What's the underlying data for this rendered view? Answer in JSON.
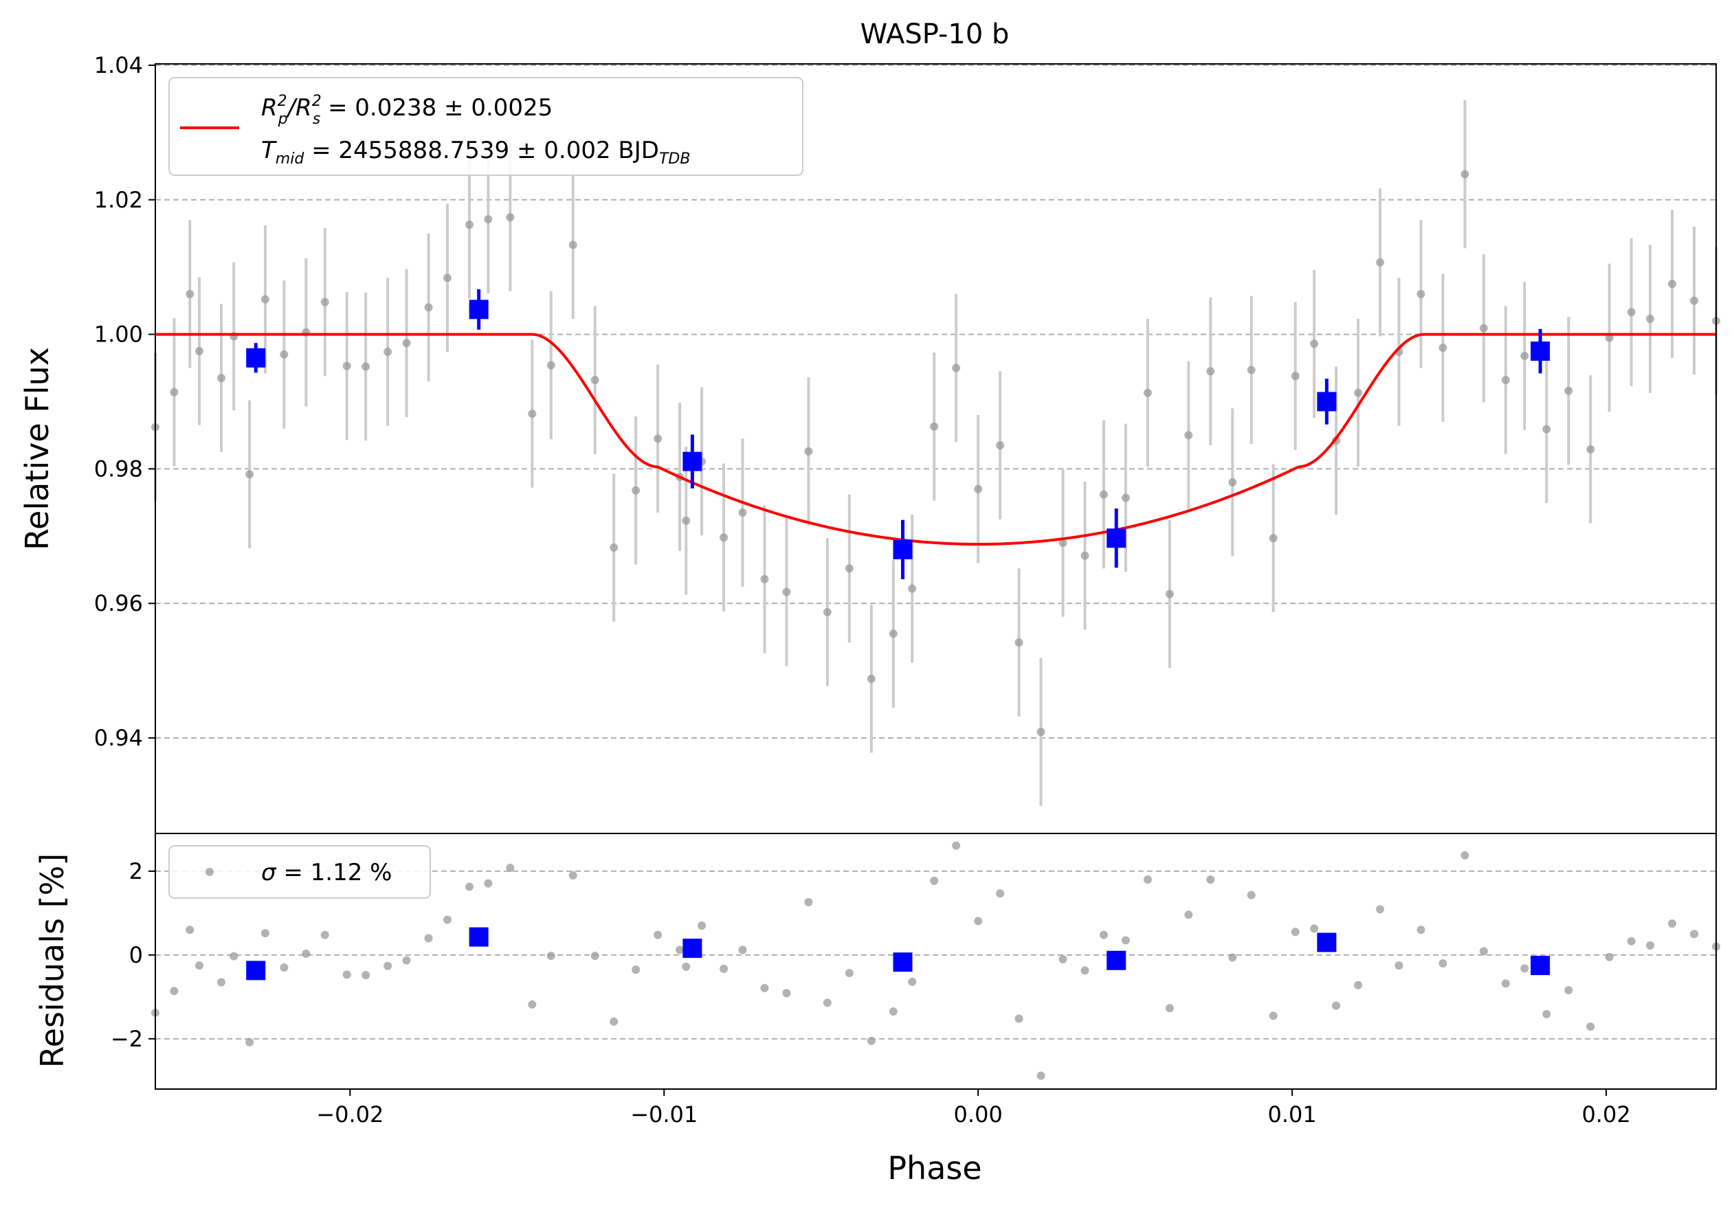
{
  "chart_data": [
    {
      "type": "scatter",
      "panel": "flux",
      "title": "WASP-10 b",
      "xlabel": "",
      "ylabel": "Relative Flux",
      "xlim": [
        -0.0262,
        0.0235
      ],
      "ylim": [
        0.9258,
        1.0402
      ],
      "yticks": [
        0.94,
        0.96,
        0.98,
        1.0,
        1.02,
        1.04
      ],
      "ytick_labels": [
        "0.94",
        "0.96",
        "0.98",
        "1.00",
        "1.02",
        "1.04"
      ],
      "grid": "y-dashed",
      "legend_position": "top-left",
      "legend": {
        "depth_label": "R",
        "depth_sub1": "p",
        "depth_sup1": "2",
        "depth_slash": "/R",
        "depth_sub2": "s",
        "depth_sup2": "2",
        "depth_value": " = 0.0238 ± 0.0025",
        "tmid_label": "T",
        "tmid_sub": "mid",
        "tmid_value": " = 2455888.7539 ± 0.002 BJD",
        "tmid_unit_sub": "TDB"
      },
      "colors": {
        "model": "#ff0000",
        "binned": "#0000ff",
        "raw": "#999999",
        "raw_err": "#cccccc"
      },
      "model": {
        "depth": 0.0312,
        "ingress_start": -0.0142,
        "ingress_end": -0.0102,
        "egress_start": 0.0102,
        "egress_end": 0.0142
      },
      "raw_points": {
        "x": [
          -0.0262,
          -0.0256,
          -0.0251,
          -0.0248,
          -0.0241,
          -0.0237,
          -0.0232,
          -0.0227,
          -0.0221,
          -0.0214,
          -0.0208,
          -0.0201,
          -0.0195,
          -0.0188,
          -0.0182,
          -0.0175,
          -0.0169,
          -0.0162,
          -0.0156,
          -0.0149,
          -0.0142,
          -0.0136,
          -0.0129,
          -0.0122,
          -0.0116,
          -0.0109,
          -0.0102,
          -0.0095,
          -0.0093,
          -0.0088,
          -0.0081,
          -0.0075,
          -0.0068,
          -0.0061,
          -0.0054,
          -0.0048,
          -0.0041,
          -0.0034,
          -0.0027,
          -0.0021,
          -0.0014,
          -0.0007,
          0.0,
          0.0007,
          0.0013,
          0.002,
          0.0027,
          0.0034,
          0.004,
          0.0047,
          0.0054,
          0.0061,
          0.0067,
          0.0074,
          0.0081,
          0.0087,
          0.0094,
          0.0101,
          0.0107,
          0.0114,
          0.0121,
          0.0128,
          0.0134,
          0.0141,
          0.0148,
          0.0155,
          0.0161,
          0.0168,
          0.0174,
          0.0181,
          0.0188,
          0.0195,
          0.0201,
          0.0208,
          0.0214,
          0.0221,
          0.0228,
          0.0235
        ],
        "y": [
          0.9862,
          0.9914,
          1.006,
          0.9975,
          0.9935,
          0.9997,
          0.9792,
          1.0052,
          0.997,
          1.0003,
          1.0048,
          0.9953,
          0.9952,
          0.9974,
          0.9987,
          1.004,
          1.0084,
          1.0163,
          1.0171,
          1.0174,
          0.9882,
          0.9954,
          1.0133,
          0.9932,
          0.9683,
          0.9768,
          0.9845,
          0.9788,
          0.9723,
          0.9811,
          0.9698,
          0.9735,
          0.9636,
          0.9617,
          0.9826,
          0.9587,
          0.9652,
          0.9488,
          0.9555,
          0.9622,
          0.9863,
          0.995,
          0.977,
          0.9835,
          0.9542,
          0.9409,
          0.969,
          0.9671,
          0.9762,
          0.9757,
          0.9913,
          0.9614,
          0.985,
          0.9945,
          0.978,
          0.9947,
          0.9697,
          0.9938,
          0.9986,
          0.9842,
          0.9913,
          1.0107,
          0.9974,
          1.006,
          0.998,
          1.0238,
          1.0009,
          0.9932,
          0.9968,
          0.9859,
          0.9916,
          0.9829,
          0.9995,
          1.0033,
          1.0023,
          1.0075,
          1.005,
          1.002
        ],
        "err": [
          0.011,
          0.011,
          0.011,
          0.011,
          0.011,
          0.011,
          0.011,
          0.011,
          0.011,
          0.011,
          0.011,
          0.011,
          0.011,
          0.011,
          0.011,
          0.011,
          0.011,
          0.011,
          0.011,
          0.011,
          0.011,
          0.011,
          0.011,
          0.011,
          0.011,
          0.011,
          0.011,
          0.011,
          0.011,
          0.011,
          0.011,
          0.011,
          0.011,
          0.011,
          0.011,
          0.011,
          0.011,
          0.011,
          0.011,
          0.011,
          0.011,
          0.011,
          0.011,
          0.011,
          0.011,
          0.011,
          0.011,
          0.011,
          0.011,
          0.011,
          0.011,
          0.011,
          0.011,
          0.011,
          0.011,
          0.011,
          0.011,
          0.011,
          0.011,
          0.011,
          0.011,
          0.011,
          0.011,
          0.011,
          0.011,
          0.011,
          0.011,
          0.011,
          0.011,
          0.011,
          0.011,
          0.011,
          0.011,
          0.011,
          0.011,
          0.011,
          0.011,
          0.011
        ]
      },
      "binned_points": {
        "x": [
          -0.023,
          -0.0159,
          -0.0091,
          -0.0024,
          0.0044,
          0.0111,
          0.0179
        ],
        "y": [
          0.9965,
          1.0037,
          0.9811,
          0.968,
          0.9697,
          0.99,
          0.9975
        ],
        "err": [
          0.0022,
          0.003,
          0.004,
          0.0044,
          0.0044,
          0.0034,
          0.0033
        ]
      }
    },
    {
      "type": "scatter",
      "panel": "residuals",
      "title": "",
      "xlabel": "Phase",
      "ylabel": "Residuals [%]",
      "xlim": [
        -0.0262,
        0.0235
      ],
      "ylim": [
        -3.2,
        2.9
      ],
      "xticks": [
        -0.02,
        -0.01,
        0.0,
        0.01,
        0.02
      ],
      "xtick_labels": [
        "−0.02",
        "−0.01",
        "0.00",
        "0.01",
        "0.02"
      ],
      "yticks": [
        -2,
        0,
        2
      ],
      "ytick_labels": [
        "−2",
        "0",
        "2"
      ],
      "grid": "y-dashed",
      "legend_position": "top-left",
      "legend": {
        "sigma_symbol": "σ",
        "sigma_value": " = 1.12 %"
      },
      "raw_points": {
        "x": [
          -0.0262,
          -0.0256,
          -0.0251,
          -0.0248,
          -0.0241,
          -0.0237,
          -0.0232,
          -0.0227,
          -0.0221,
          -0.0214,
          -0.0208,
          -0.0201,
          -0.0195,
          -0.0188,
          -0.0182,
          -0.0175,
          -0.0169,
          -0.0162,
          -0.0156,
          -0.0149,
          -0.0142,
          -0.0136,
          -0.0129,
          -0.0122,
          -0.0116,
          -0.0109,
          -0.0102,
          -0.0095,
          -0.0093,
          -0.0088,
          -0.0081,
          -0.0075,
          -0.0068,
          -0.0061,
          -0.0054,
          -0.0048,
          -0.0041,
          -0.0034,
          -0.0027,
          -0.0021,
          -0.0014,
          -0.0007,
          0.0,
          0.0007,
          0.0013,
          0.002,
          0.0027,
          0.0034,
          0.004,
          0.0047,
          0.0054,
          0.0061,
          0.0067,
          0.0074,
          0.0081,
          0.0087,
          0.0094,
          0.0101,
          0.0107,
          0.0114,
          0.0121,
          0.0128,
          0.0134,
          0.0141,
          0.0148,
          0.0155,
          0.0161,
          0.0168,
          0.0174,
          0.0181,
          0.0188,
          0.0195,
          0.0201,
          0.0208,
          0.0214,
          0.0221,
          0.0228,
          0.0235
        ],
        "y": [
          -1.38,
          -0.86,
          0.6,
          -0.25,
          -0.65,
          -0.03,
          -2.08,
          0.52,
          -0.3,
          0.03,
          0.48,
          -0.47,
          -0.48,
          -0.26,
          -0.13,
          0.4,
          0.84,
          1.63,
          1.71,
          2.08,
          -1.18,
          -0.02,
          1.9,
          -0.02,
          -1.59,
          -0.35,
          0.48,
          0.12,
          -0.28,
          0.7,
          -0.33,
          0.12,
          -0.79,
          -0.91,
          1.26,
          -1.14,
          -0.43,
          -2.05,
          -1.35,
          -0.64,
          1.77,
          2.61,
          0.81,
          1.47,
          -1.52,
          -2.88,
          -0.1,
          -0.37,
          0.48,
          0.35,
          1.8,
          -1.27,
          0.96,
          1.8,
          -0.06,
          1.43,
          -1.45,
          0.55,
          0.63,
          -1.21,
          -0.72,
          1.09,
          -0.25,
          0.6,
          -0.2,
          2.38,
          0.09,
          -0.68,
          -0.32,
          -1.41,
          -0.84,
          -1.71,
          -0.05,
          0.33,
          0.23,
          0.75,
          0.5,
          0.2
        ]
      },
      "binned_points": {
        "x": [
          -0.023,
          -0.0159,
          -0.0091,
          -0.0024,
          0.0044,
          0.0111,
          0.0179
        ],
        "y": [
          -0.37,
          0.43,
          0.16,
          -0.17,
          -0.13,
          0.3,
          -0.25
        ]
      }
    }
  ]
}
